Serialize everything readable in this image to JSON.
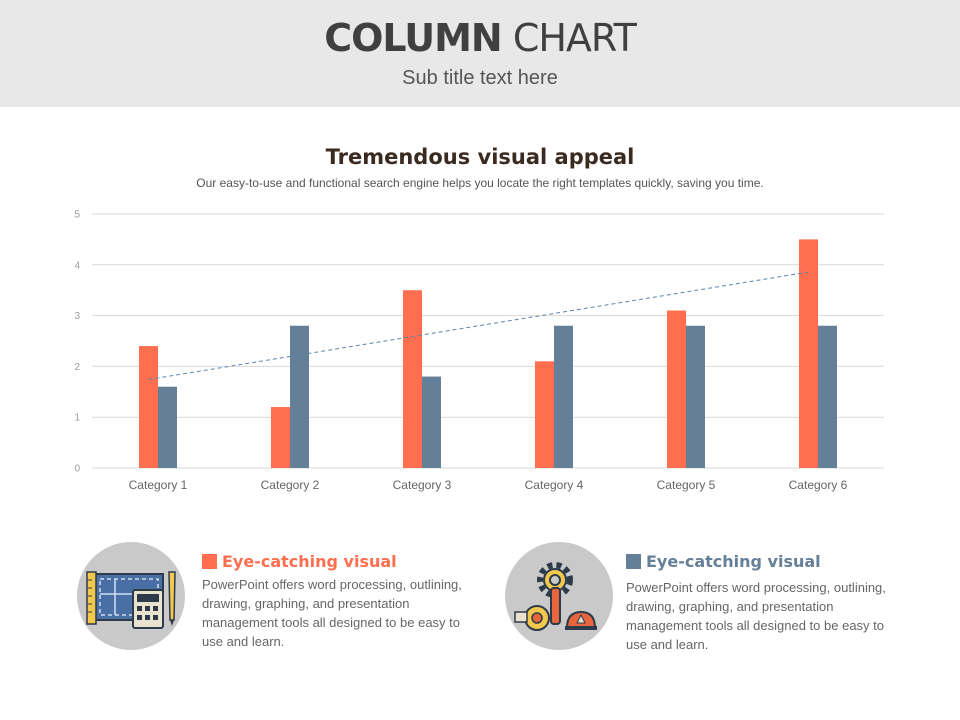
{
  "header": {
    "title_bold": "COLUMN",
    "title_light": "CHART",
    "subtitle": "Sub title text here"
  },
  "chart_section": {
    "title": "Tremendous visual appeal",
    "description": "Our easy-to-use and functional search engine helps you locate the right templates quickly, saving you time."
  },
  "colors": {
    "series1": "#ff6f4f",
    "series2": "#657f98",
    "trendline": "#5b86ad",
    "grid": "#d9d9d9"
  },
  "chart_data": {
    "type": "bar",
    "categories": [
      "Category 1",
      "Category 2",
      "Category 3",
      "Category 4",
      "Category 5",
      "Category 6"
    ],
    "series": [
      {
        "values": [
          2.4,
          1.2,
          3.5,
          2.1,
          3.1,
          4.5
        ]
      },
      {
        "values": [
          1.6,
          2.8,
          1.8,
          2.8,
          2.8,
          2.8
        ]
      }
    ],
    "trendline": {
      "series_index": 0,
      "type": "linear",
      "style": "dashed"
    },
    "ylim": [
      0,
      5
    ],
    "yticks": [
      0,
      1,
      2,
      3,
      4,
      5
    ],
    "title": "",
    "xlabel": "",
    "ylabel": "",
    "grid": true,
    "legend": "none"
  },
  "features": [
    {
      "icon": "blueprint-calculator-icon",
      "title": "Eye-catching visual",
      "description": "PowerPoint offers word processing, outlining, drawing, graphing, and presentation management tools all designed to be easy to use and learn."
    },
    {
      "icon": "engineering-tools-icon",
      "title": "Eye-catching visual",
      "description": "PowerPoint offers word processing, outlining, drawing, graphing, and presentation management tools all designed to be easy to use and learn."
    }
  ]
}
